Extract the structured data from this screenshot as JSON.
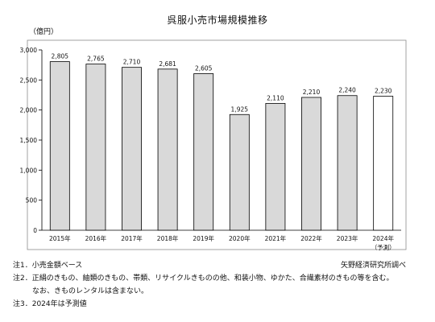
{
  "page": {
    "source": "矢野経済研究所調べ",
    "notes": [
      "注1．小売金額ベース",
      "注2．正絹のきもの、紬類のきもの、帯類、リサイクルきものの他、和装小物、ゆかた、合繊素材のきもの等を含む。",
      "なお、きものレンタルは含まない。",
      "注3．2024年は予測値"
    ]
  },
  "chart_data": {
    "type": "bar",
    "title": "呉服小売市場規模推移",
    "ylabel": "（億円）",
    "xlabel": "",
    "ylim": [
      0,
      3000
    ],
    "yticks": [
      0,
      500,
      1000,
      1500,
      2000,
      2500,
      3000
    ],
    "ytick_labels": [
      "0",
      "500",
      "1,000",
      "1,500",
      "2,000",
      "2,500",
      "3,000"
    ],
    "grid": false,
    "legend": "none",
    "categories": [
      "2015年",
      "2016年",
      "2017年",
      "2018年",
      "2019年",
      "2020年",
      "2021年",
      "2022年",
      "2023年",
      "2024年"
    ],
    "category_sublabels": [
      "",
      "",
      "",
      "",
      "",
      "",
      "",
      "",
      "",
      "（予測）"
    ],
    "values": [
      2805,
      2765,
      2710,
      2681,
      2605,
      1925,
      2110,
      2210,
      2240,
      2230
    ],
    "value_labels": [
      "2,805",
      "2,765",
      "2,710",
      "2,681",
      "2,605",
      "1,925",
      "2,110",
      "2,210",
      "2,240",
      "2,230"
    ],
    "forecast_flags": [
      false,
      false,
      false,
      false,
      false,
      false,
      false,
      false,
      false,
      true
    ],
    "colors": {
      "bar": "#d9d9d9",
      "bar_forecast": "#ffffff",
      "bar_stroke": "#000000",
      "axis": "#000000",
      "plot_border": "#8c8c8c"
    }
  }
}
